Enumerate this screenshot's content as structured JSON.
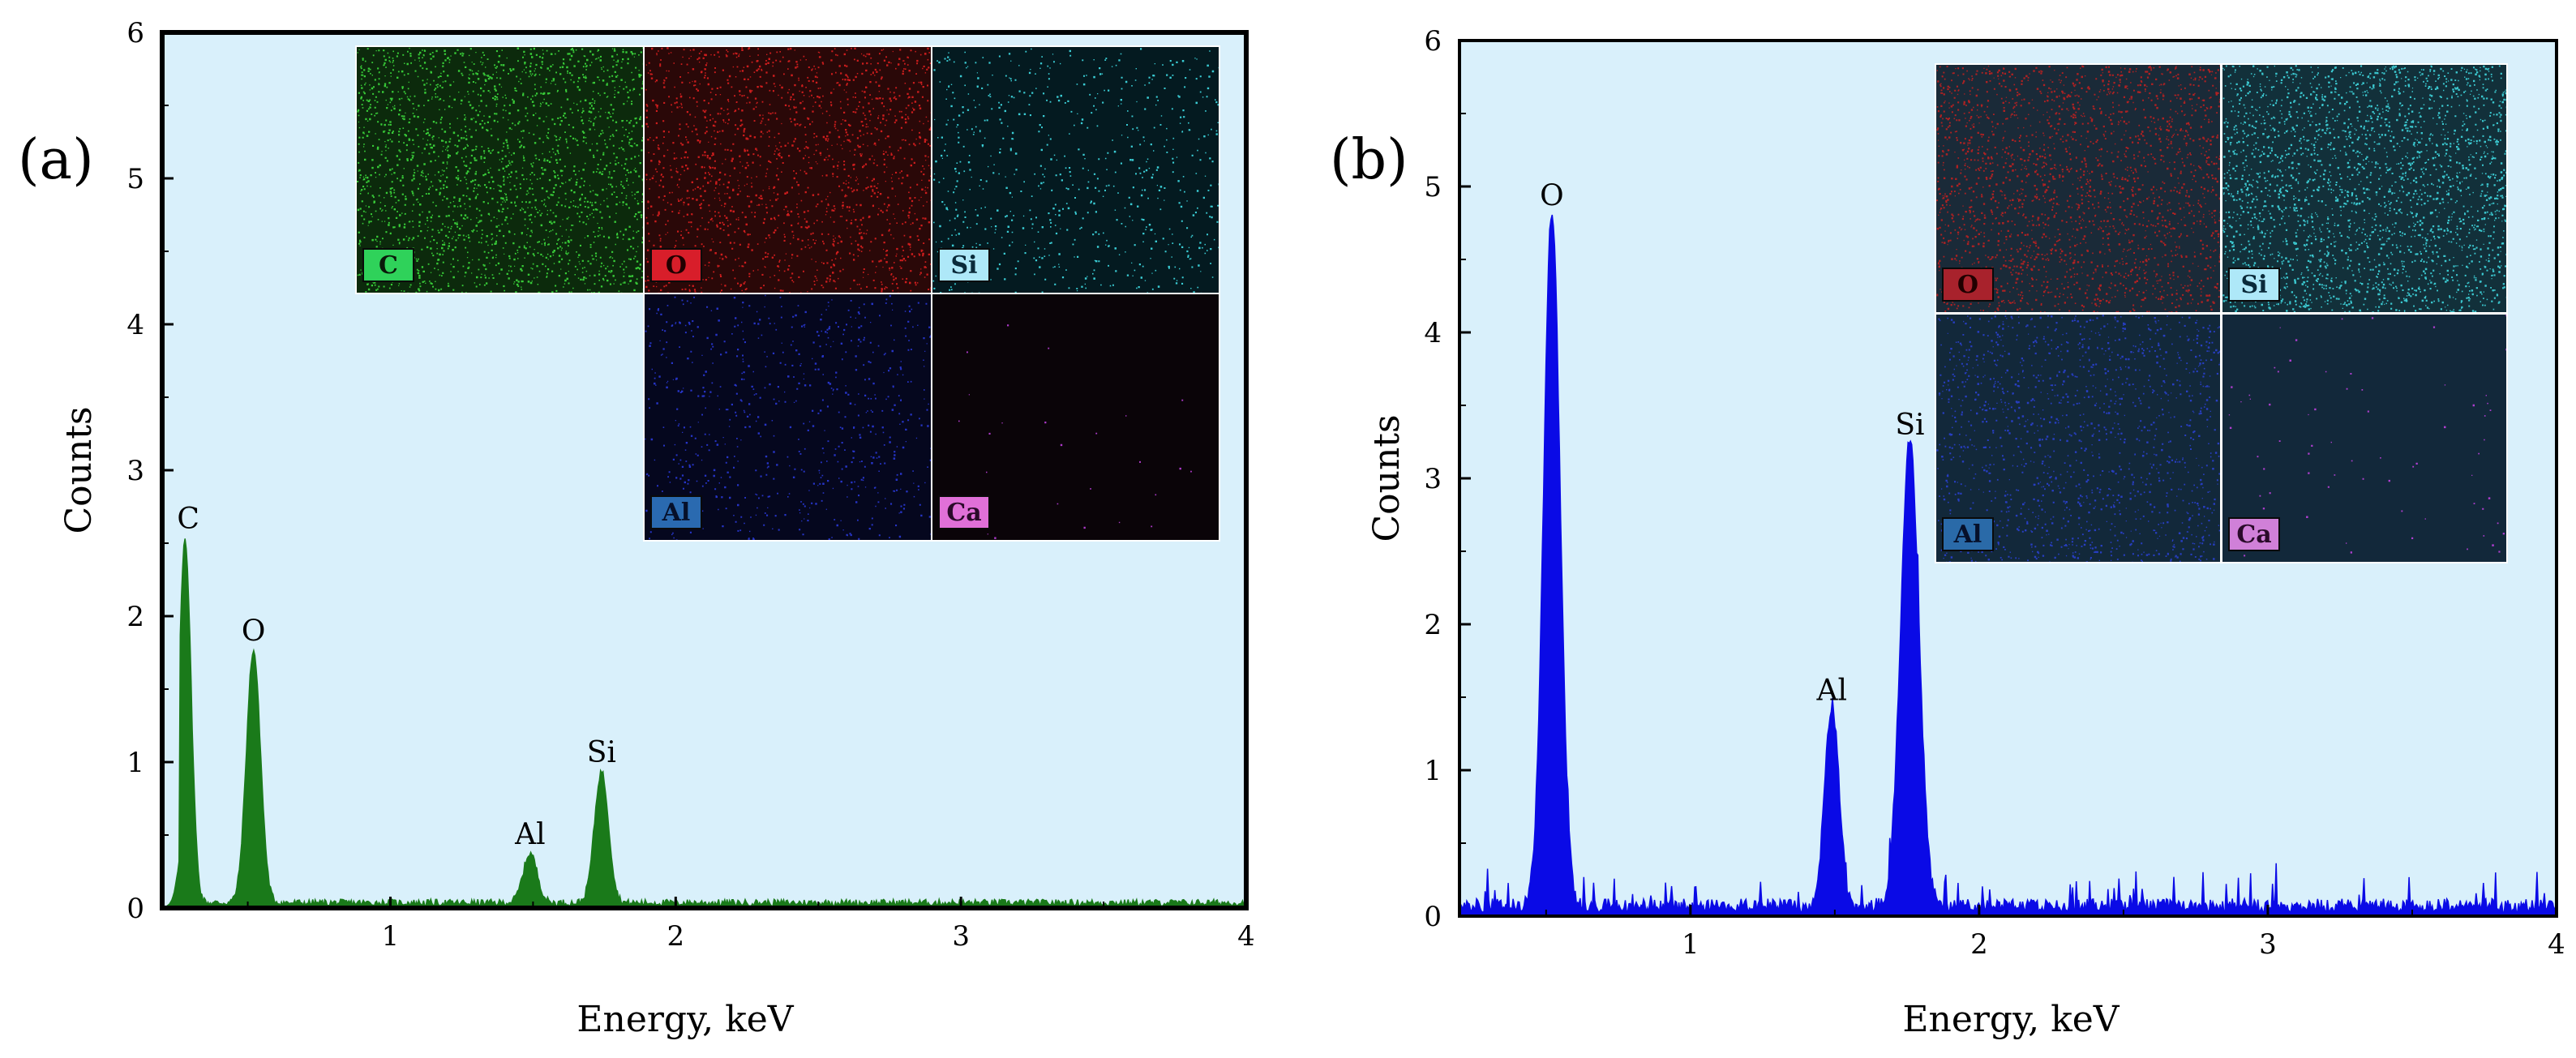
{
  "chart_data": [
    {
      "type": "area",
      "panel_label": "(a)",
      "xlabel": "Energy, keV",
      "ylabel": "Counts",
      "xlim": [
        0.2,
        4
      ],
      "ylim": [
        0,
        6
      ],
      "xticks": [
        1,
        2,
        3,
        4
      ],
      "yticks": [
        0,
        1,
        2,
        3,
        4,
        5,
        6
      ],
      "grid": false,
      "background_color": "#d9f0fb",
      "fill_color": "#1a7a1a",
      "peaks": [
        {
          "label": "C",
          "x": 0.28,
          "y": 2.5,
          "width": 0.03
        },
        {
          "label": "O",
          "x": 0.52,
          "y": 1.73,
          "width": 0.035
        },
        {
          "label": "Al",
          "x": 1.49,
          "y": 0.34,
          "width": 0.035
        },
        {
          "label": "Si",
          "x": 1.74,
          "y": 0.9,
          "width": 0.035
        }
      ],
      "baseline": 0.04,
      "inset_maps": [
        {
          "label": "C",
          "color": "#3ddc3d",
          "bg": "#0c2a0c",
          "label_bg": "#2fd25a",
          "label_fg": "#0a1a0a",
          "density": 2200
        },
        {
          "label": "O",
          "color": "#e02020",
          "bg": "#2a0808",
          "label_bg": "#d81e2a",
          "label_fg": "#200000",
          "density": 1700
        },
        {
          "label": "Si",
          "color": "#40e0e8",
          "bg": "#041a20",
          "label_bg": "#aee8f8",
          "label_fg": "#0a2a3a",
          "density": 700
        },
        {
          "label": "Al",
          "color": "#2a3ad8",
          "bg": "#05071e",
          "label_bg": "#2a6ab0",
          "label_fg": "#06102a",
          "density": 700
        },
        {
          "label": "Ca",
          "color": "#c040e0",
          "bg": "#0a0408",
          "label_bg": "#e070d8",
          "label_fg": "#2a0a2a",
          "density": 25
        }
      ]
    },
    {
      "type": "area",
      "panel_label": "(b)",
      "xlabel": "Energy, keV",
      "ylabel": "Counts",
      "xlim": [
        0.2,
        4
      ],
      "ylim": [
        0,
        6
      ],
      "xticks": [
        1,
        2,
        3,
        4
      ],
      "yticks": [
        0,
        1,
        2,
        3,
        4,
        5,
        6
      ],
      "grid": false,
      "background_color": "#d9f0fb",
      "fill_color": "#0a0ae6",
      "peaks": [
        {
          "label": "O",
          "x": 0.52,
          "y": 4.77,
          "width": 0.04
        },
        {
          "label": "Al",
          "x": 1.49,
          "y": 1.38,
          "width": 0.035
        },
        {
          "label": "Si",
          "x": 1.76,
          "y": 3.2,
          "width": 0.045
        }
      ],
      "baseline": 0.08,
      "inset_maps": [
        {
          "label": "O",
          "color": "#c02020",
          "bg": "#1a2a38",
          "label_bg": "#a8222c",
          "label_fg": "#200000",
          "density": 2200
        },
        {
          "label": "Si",
          "color": "#40d8e0",
          "bg": "#12303a",
          "label_bg": "#aee8f8",
          "label_fg": "#0a2a3a",
          "density": 2600
        },
        {
          "label": "Al",
          "color": "#2a40d0",
          "bg": "#12283a",
          "label_bg": "#2a6aa8",
          "label_fg": "#06102a",
          "density": 1400
        },
        {
          "label": "Ca",
          "color": "#c040e0",
          "bg": "#12283a",
          "label_bg": "#d080d8",
          "label_fg": "#2a0a2a",
          "density": 70
        }
      ]
    }
  ]
}
